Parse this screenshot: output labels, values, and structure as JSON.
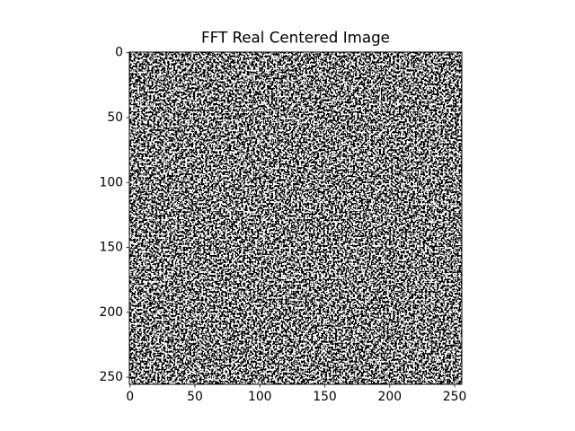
{
  "chart_data": {
    "type": "image",
    "title": "FFT Real Centered Image",
    "xlim": [
      -0.5,
      255.5
    ],
    "ylim": [
      255.5,
      -0.5
    ],
    "xticks": [
      0,
      50,
      100,
      150,
      200,
      250
    ],
    "yticks": [
      0,
      50,
      100,
      150,
      200,
      250
    ],
    "colormap": "gray"
  }
}
